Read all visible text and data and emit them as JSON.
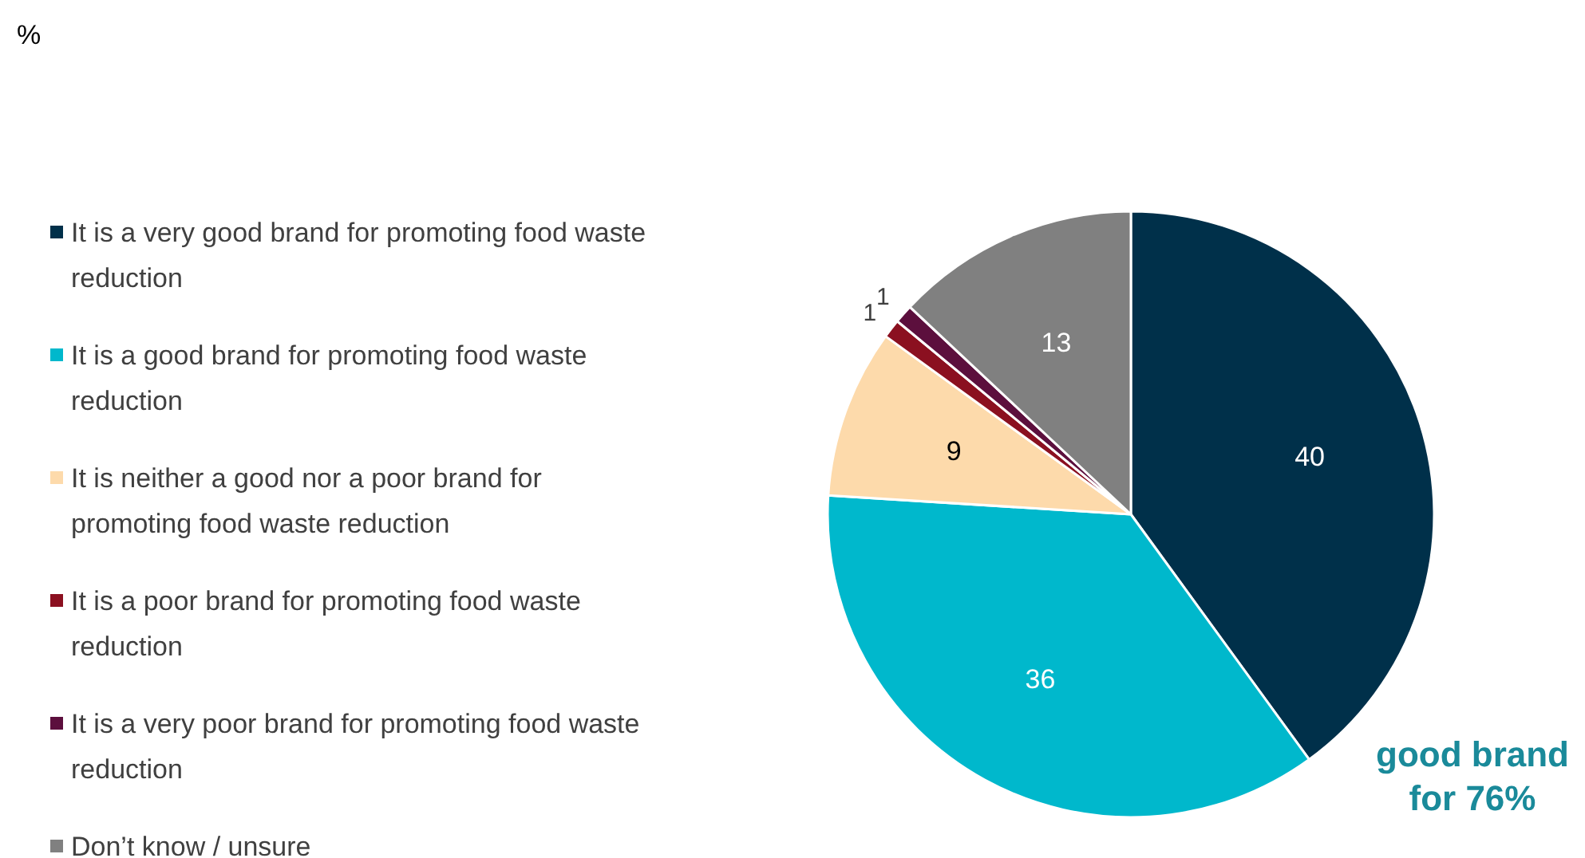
{
  "chart_data": {
    "type": "pie",
    "title": "%",
    "categories": [
      "It is a very good brand for promoting food waste reduction",
      "It is a good brand for promoting food waste reduction",
      "It is neither a good nor a poor brand for promoting food waste reduction",
      "It is a poor brand for promoting food waste reduction",
      "It is a very poor brand for promoting food waste reduction",
      "Don’t know / unsure"
    ],
    "values": [
      40,
      36,
      9,
      1,
      1,
      13
    ],
    "colors": [
      "#00304a",
      "#00b8cc",
      "#fddaab",
      "#8b1020",
      "#5c0f3d",
      "#808080"
    ],
    "data_labels": true,
    "legend": "left",
    "annotations": [
      "good brand\nfor 76%"
    ]
  }
}
